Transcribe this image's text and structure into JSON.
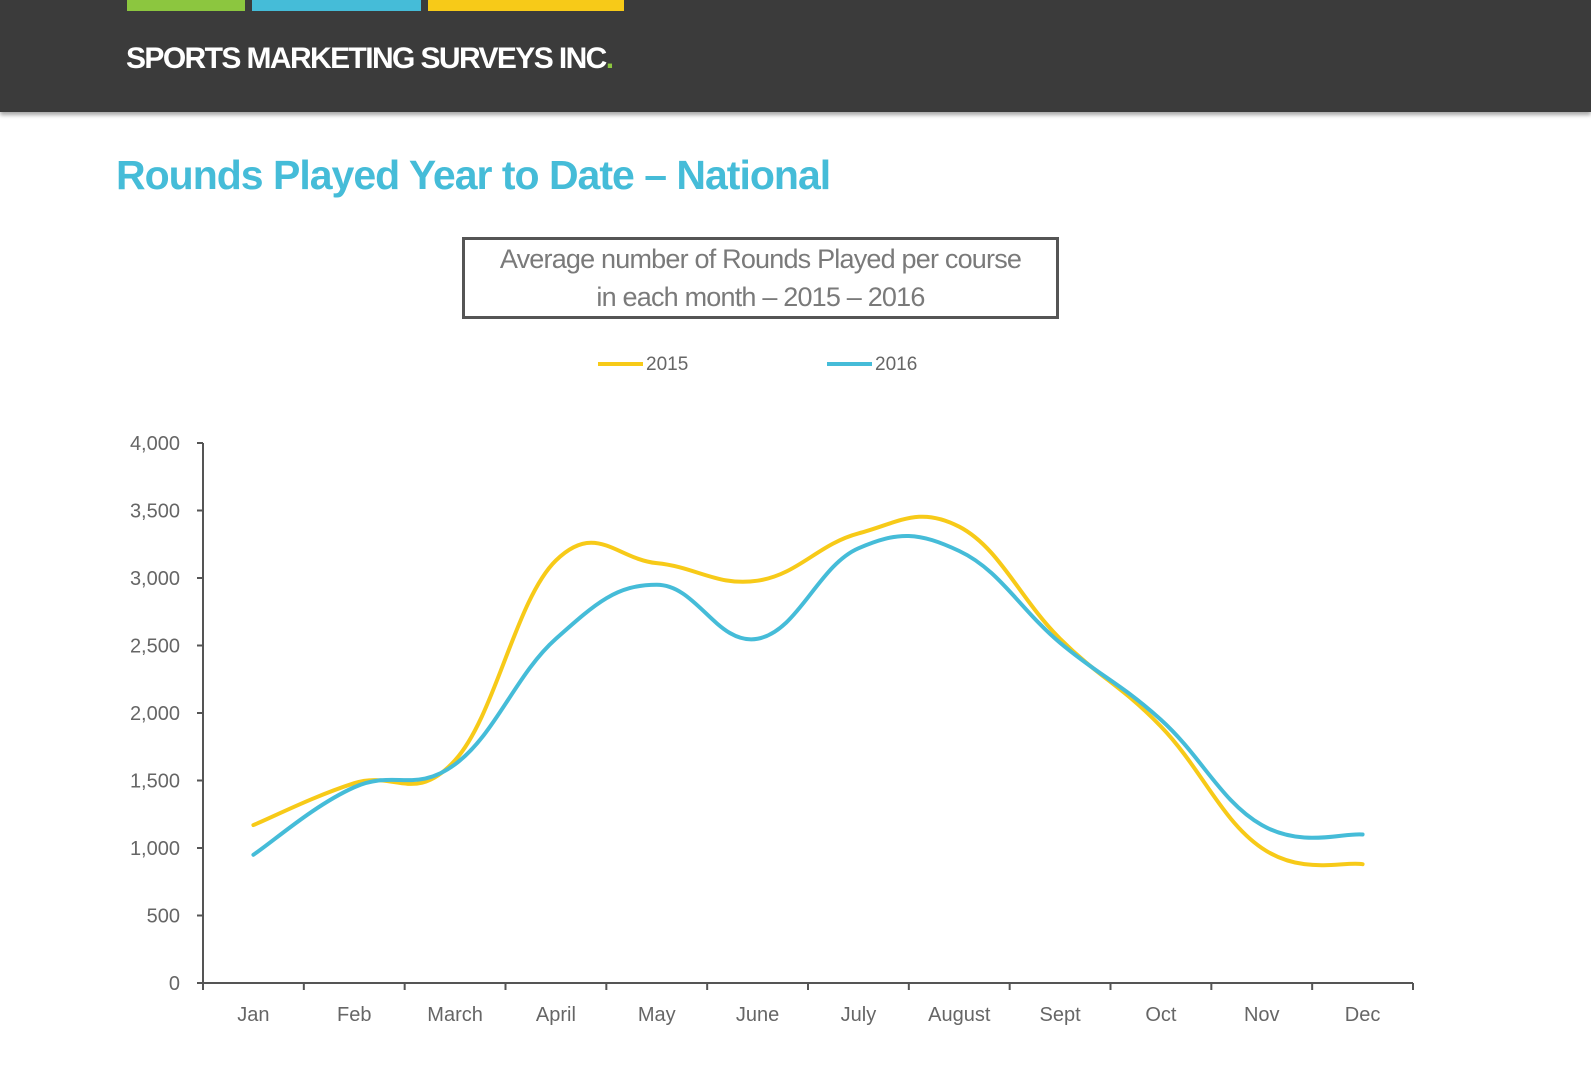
{
  "header": {
    "brand": "SPORTS MARKETING SURVEYS INC",
    "brand_dot": ".",
    "stripe_colors": [
      "#8cc63f",
      "#45bcd8",
      "#f7ca18"
    ]
  },
  "page_title": "Rounds Played Year to Date – National",
  "chart_data": {
    "type": "line",
    "title_lines": [
      "Average number of Rounds Played per course",
      "in each month – 2015 – 2016"
    ],
    "categories": [
      "Jan",
      "Feb",
      "March",
      "April",
      "May",
      "June",
      "July",
      "August",
      "Sept",
      "Oct",
      "Nov",
      "Dec"
    ],
    "series": [
      {
        "name": "2015",
        "color": "#f7ca18",
        "values": [
          1170,
          1480,
          1650,
          3130,
          3110,
          2980,
          3330,
          3380,
          2550,
          1900,
          1000,
          880
        ]
      },
      {
        "name": "2016",
        "color": "#45bcd8",
        "values": [
          950,
          1450,
          1620,
          2550,
          2950,
          2550,
          3220,
          3200,
          2520,
          1950,
          1170,
          1100
        ]
      }
    ],
    "ylim": [
      0,
      4000
    ],
    "yticks": [
      0,
      500,
      1000,
      1500,
      2000,
      2500,
      3000,
      3500,
      4000
    ],
    "ytick_labels": [
      "0",
      "500",
      "1,000",
      "1,500",
      "2,000",
      "2,500",
      "3,000",
      "3,500",
      "4,000"
    ],
    "xlabel": "",
    "ylabel": "",
    "grid": false,
    "legend": "top-center",
    "axis_color": "#555555"
  }
}
